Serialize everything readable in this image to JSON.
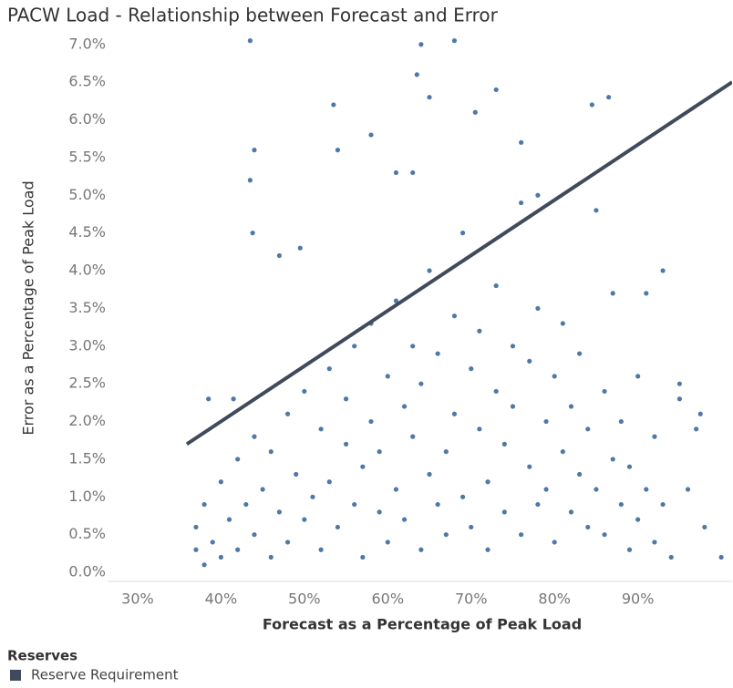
{
  "chart_data": {
    "type": "scatter",
    "title": "PACW Load - Relationship between Forecast and Error",
    "x_label": "Forecast as a Percentage of Peak Load",
    "y_label": "Error as a Percentage of Peak Load",
    "xlim": [
      26.4,
      101.3
    ],
    "ylim": [
      -0.12,
      7.13
    ],
    "xticks": [
      {
        "value": 30,
        "label": "30%"
      },
      {
        "value": 40,
        "label": "40%"
      },
      {
        "value": 50,
        "label": "50%"
      },
      {
        "value": 60,
        "label": "60%"
      },
      {
        "value": 70,
        "label": "70%"
      },
      {
        "value": 80,
        "label": "80%"
      },
      {
        "value": 90,
        "label": "90%"
      }
    ],
    "yticks": [
      {
        "value": 0,
        "label": "0.0%"
      },
      {
        "value": 0.5,
        "label": "0.5%"
      },
      {
        "value": 1,
        "label": "1.0%"
      },
      {
        "value": 1.5,
        "label": "1.5%"
      },
      {
        "value": 2,
        "label": "2.0%"
      },
      {
        "value": 2.5,
        "label": "2.5%"
      },
      {
        "value": 3,
        "label": "3.0%"
      },
      {
        "value": 3.5,
        "label": "3.5%"
      },
      {
        "value": 4,
        "label": "4.0%"
      },
      {
        "value": 4.5,
        "label": "4.5%"
      },
      {
        "value": 5,
        "label": "5.0%"
      },
      {
        "value": 5.5,
        "label": "5.5%"
      },
      {
        "value": 6,
        "label": "6.0%"
      },
      {
        "value": 6.5,
        "label": "6.5%"
      },
      {
        "value": 7,
        "label": "7.0%"
      }
    ],
    "grid": false,
    "legend_title": "Reserves",
    "legend_position": "bottom-left",
    "series": [
      {
        "color": "#4e79a7",
        "x": [
          37,
          37,
          38,
          38,
          39,
          40,
          40,
          41,
          42,
          42,
          43,
          44,
          44,
          45,
          46,
          46,
          47,
          48,
          48,
          49,
          50,
          50,
          51,
          52,
          52,
          53,
          53,
          54,
          55,
          55,
          56,
          56,
          57,
          57,
          58,
          58,
          59,
          59,
          60,
          60,
          61,
          61,
          62,
          62,
          63,
          63,
          64,
          64,
          65,
          65,
          66,
          66,
          67,
          67,
          68,
          68,
          69,
          69,
          70,
          70,
          71,
          71,
          72,
          72,
          73,
          73,
          74,
          74,
          75,
          75,
          76,
          76,
          77,
          77,
          78,
          78,
          79,
          79,
          80,
          80,
          81,
          81,
          82,
          82,
          83,
          83,
          84,
          84,
          85,
          85,
          86,
          86,
          87,
          87,
          88,
          88,
          89,
          89,
          90,
          90,
          91,
          92,
          92,
          93,
          94,
          95,
          96,
          97,
          98,
          100,
          43.5,
          43.5,
          44,
          43.8,
          53.5,
          54,
          58,
          61,
          63,
          64,
          63.5,
          65,
          68,
          70.5,
          73,
          76,
          78,
          84.5,
          86.5,
          91,
          95,
          97.5,
          93,
          38.5,
          47,
          49.5,
          41.5
        ],
        "values": [
          0.3,
          0.6,
          0.1,
          0.9,
          0.4,
          1.2,
          0.2,
          0.7,
          1.5,
          0.3,
          0.9,
          1.8,
          0.5,
          1.1,
          0.2,
          1.6,
          0.8,
          2.1,
          0.4,
          1.3,
          0.7,
          2.4,
          1.0,
          0.3,
          1.9,
          2.7,
          1.2,
          0.6,
          1.7,
          2.3,
          0.9,
          3.0,
          1.4,
          0.2,
          2.0,
          3.3,
          0.8,
          1.6,
          2.6,
          0.4,
          1.1,
          3.6,
          2.2,
          0.7,
          1.8,
          3.0,
          0.3,
          2.5,
          1.3,
          4.0,
          0.9,
          2.9,
          1.6,
          0.5,
          3.4,
          2.1,
          1.0,
          4.5,
          2.7,
          0.6,
          1.9,
          3.2,
          1.2,
          0.3,
          2.4,
          3.8,
          0.8,
          1.7,
          3.0,
          2.2,
          0.5,
          4.9,
          1.4,
          2.8,
          0.9,
          3.5,
          2.0,
          1.1,
          2.6,
          0.4,
          1.6,
          3.3,
          0.8,
          2.2,
          1.3,
          2.9,
          0.6,
          1.9,
          4.8,
          1.1,
          2.4,
          0.5,
          1.5,
          3.7,
          0.9,
          2.0,
          0.3,
          1.4,
          2.6,
          0.7,
          1.1,
          0.4,
          1.8,
          0.9,
          0.2,
          2.3,
          1.1,
          1.9,
          0.6,
          0.2,
          7.05,
          5.2,
          5.6,
          4.5,
          6.2,
          5.6,
          5.8,
          5.3,
          5.3,
          7.0,
          6.6,
          6.3,
          7.05,
          6.1,
          6.4,
          5.7,
          5.0,
          6.2,
          6.3,
          3.7,
          2.5,
          2.1,
          4.0,
          2.3,
          4.2,
          4.3,
          2.3
        ]
      },
      {
        "name": "Reserve Requirement",
        "type": "line",
        "color": "#3f4b5b",
        "x": [
          35.9,
          101.3
        ],
        "values": [
          1.7,
          6.5
        ]
      }
    ]
  }
}
